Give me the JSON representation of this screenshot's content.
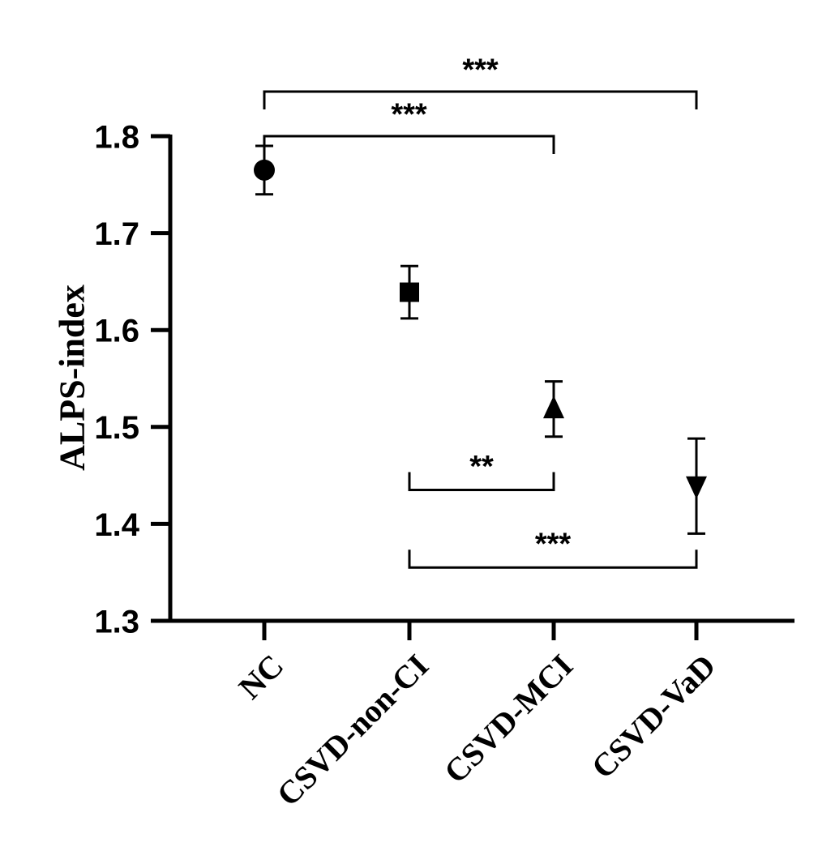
{
  "chart_data": {
    "type": "scatter",
    "title": "",
    "xlabel": "",
    "ylabel": "ALPS-index",
    "ylim": [
      1.3,
      1.8
    ],
    "yticks": [
      1.3,
      1.4,
      1.5,
      1.6,
      1.7,
      1.8
    ],
    "ytick_labels": [
      "1.3",
      "1.4",
      "1.5",
      "1.6",
      "1.7",
      "1.8"
    ],
    "grid": false,
    "categories": [
      "NC",
      "CSVD-non-CI",
      "CSVD-MCI",
      "CSVD-VaD"
    ],
    "series": [
      {
        "points": [
          {
            "category": "NC",
            "mean": 1.765,
            "error_low": 1.74,
            "error_high": 1.79,
            "marker": "circle"
          },
          {
            "category": "CSVD-non-CI",
            "mean": 1.639,
            "error_low": 1.612,
            "error_high": 1.666,
            "marker": "square"
          },
          {
            "category": "CSVD-MCI",
            "mean": 1.519,
            "error_low": 1.49,
            "error_high": 1.547,
            "marker": "triangle-up"
          },
          {
            "category": "CSVD-VaD",
            "mean": 1.439,
            "error_low": 1.39,
            "error_high": 1.488,
            "marker": "triangle-down"
          }
        ]
      }
    ],
    "significance": [
      {
        "from": "NC",
        "to": "CSVD-VaD",
        "label": "***",
        "position": "above",
        "level": 1.846
      },
      {
        "from": "NC",
        "to": "CSVD-MCI",
        "label": "***",
        "position": "above",
        "level": 1.8
      },
      {
        "from": "CSVD-non-CI",
        "to": "CSVD-MCI",
        "label": "**",
        "position": "below",
        "level": 1.435
      },
      {
        "from": "CSVD-non-CI",
        "to": "CSVD-VaD",
        "label": "***",
        "position": "below",
        "level": 1.355
      }
    ],
    "colors": {
      "marker": "#000000",
      "axis": "#000000"
    }
  }
}
